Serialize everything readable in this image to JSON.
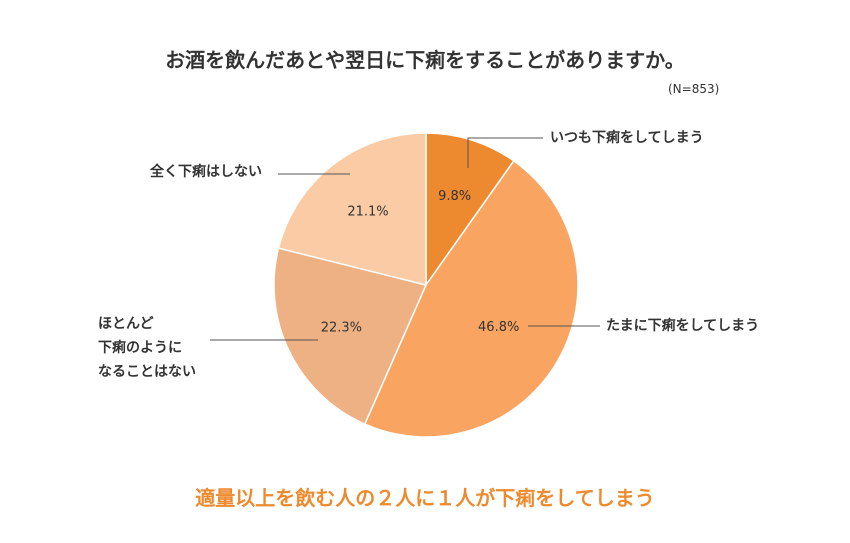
{
  "chart_data": {
    "type": "pie",
    "title": "お酒を飲んだあとや翌日に下痢をすることがありますか。",
    "sample_note": "(N=853)",
    "slices": [
      {
        "label": "いつも下痢をしてしまう",
        "value": 9.8,
        "value_label": "9.8%",
        "color": "#ed8a2f"
      },
      {
        "label": "たまに下痢をしてしまう",
        "value": 46.8,
        "value_label": "46.8%",
        "color": "#f9a461"
      },
      {
        "label": "ほとんど下痢のようになることはない",
        "value": 22.3,
        "value_label": "22.3%",
        "color": "#eeb183"
      },
      {
        "label": "全く下痢はしない",
        "value": 21.1,
        "value_label": "21.1%",
        "color": "#fbcba6"
      }
    ],
    "label_lines": {
      "slice2": [
        "ほとんど",
        "下痢のように",
        "なることはない"
      ]
    }
  },
  "conclusion": {
    "text": "適量以上を飲む人の２人に１人が下痢をしてしまう",
    "color": "#ee8a2e"
  }
}
